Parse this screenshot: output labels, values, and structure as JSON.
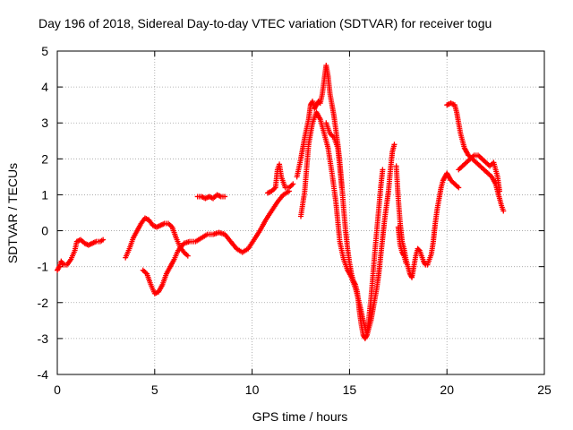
{
  "chart_data": {
    "type": "scatter",
    "title": "Day 196 of 2018, Sidereal Day-to-day VTEC variation (SDTVAR) for receiver togu",
    "xlabel": "GPS time / hours",
    "ylabel": "SDTVAR / TECUs",
    "xlim": [
      0,
      25
    ],
    "ylim": [
      -4,
      5
    ],
    "xticks": [
      0,
      5,
      10,
      15,
      20,
      25
    ],
    "yticks": [
      -4,
      -3,
      -2,
      -1,
      0,
      1,
      2,
      3,
      4,
      5
    ],
    "grid": true,
    "marker": "+",
    "color": "#ff0000",
    "series": [
      {
        "name": "SDTVAR",
        "segments": [
          [
            [
              0.0,
              -1.1
            ],
            [
              0.1,
              -1.0
            ],
            [
              0.2,
              -0.85
            ],
            [
              0.3,
              -0.95
            ],
            [
              0.5,
              -0.95
            ],
            [
              0.7,
              -0.8
            ],
            [
              0.9,
              -0.55
            ],
            [
              1.0,
              -0.3
            ],
            [
              1.2,
              -0.25
            ],
            [
              1.4,
              -0.35
            ],
            [
              1.6,
              -0.4
            ],
            [
              1.8,
              -0.35
            ],
            [
              2.0,
              -0.3
            ],
            [
              2.2,
              -0.3
            ],
            [
              2.35,
              -0.25
            ]
          ],
          [
            [
              3.5,
              -0.75
            ],
            [
              3.7,
              -0.5
            ],
            [
              3.9,
              -0.2
            ],
            [
              4.1,
              0.0
            ],
            [
              4.3,
              0.2
            ],
            [
              4.5,
              0.35
            ],
            [
              4.7,
              0.3
            ],
            [
              4.9,
              0.15
            ],
            [
              5.1,
              0.1
            ],
            [
              5.3,
              0.15
            ],
            [
              5.5,
              0.2
            ],
            [
              5.7,
              0.2
            ],
            [
              5.9,
              0.1
            ],
            [
              6.1,
              -0.2
            ],
            [
              6.3,
              -0.45
            ],
            [
              6.5,
              -0.6
            ],
            [
              6.7,
              -0.7
            ]
          ],
          [
            [
              4.4,
              -1.1
            ],
            [
              4.6,
              -1.2
            ],
            [
              4.8,
              -1.5
            ],
            [
              5.0,
              -1.75
            ],
            [
              5.2,
              -1.7
            ],
            [
              5.4,
              -1.5
            ],
            [
              5.6,
              -1.2
            ],
            [
              5.8,
              -1.0
            ],
            [
              6.0,
              -0.8
            ],
            [
              6.2,
              -0.55
            ],
            [
              6.5,
              -0.35
            ],
            [
              6.8,
              -0.3
            ],
            [
              7.1,
              -0.3
            ],
            [
              7.4,
              -0.2
            ],
            [
              7.7,
              -0.1
            ],
            [
              8.0,
              -0.1
            ],
            [
              8.3,
              -0.05
            ],
            [
              8.6,
              -0.1
            ],
            [
              8.9,
              -0.3
            ],
            [
              9.2,
              -0.5
            ],
            [
              9.5,
              -0.6
            ],
            [
              9.8,
              -0.5
            ],
            [
              10.1,
              -0.25
            ],
            [
              10.4,
              0.0
            ],
            [
              10.7,
              0.3
            ],
            [
              11.0,
              0.55
            ],
            [
              11.3,
              0.8
            ],
            [
              11.6,
              1.0
            ],
            [
              11.9,
              1.1
            ]
          ],
          [
            [
              7.2,
              0.95
            ],
            [
              7.4,
              0.95
            ],
            [
              7.6,
              0.9
            ],
            [
              7.8,
              0.95
            ],
            [
              8.0,
              0.9
            ],
            [
              8.2,
              1.0
            ],
            [
              8.4,
              0.95
            ],
            [
              8.6,
              0.95
            ]
          ],
          [
            [
              10.8,
              1.05
            ],
            [
              11.0,
              1.1
            ],
            [
              11.2,
              1.2
            ],
            [
              11.3,
              1.7
            ],
            [
              11.4,
              1.85
            ],
            [
              11.5,
              1.5
            ],
            [
              11.7,
              1.2
            ],
            [
              11.9,
              1.2
            ],
            [
              12.1,
              1.3
            ]
          ],
          [
            [
              12.3,
              1.5
            ],
            [
              12.5,
              2.0
            ],
            [
              12.7,
              2.6
            ],
            [
              12.9,
              3.1
            ],
            [
              13.0,
              3.5
            ],
            [
              13.1,
              3.6
            ],
            [
              13.2,
              3.4
            ],
            [
              13.3,
              3.5
            ],
            [
              13.4,
              3.6
            ],
            [
              13.5,
              3.55
            ],
            [
              13.6,
              3.8
            ],
            [
              13.7,
              4.2
            ],
            [
              13.8,
              4.6
            ],
            [
              13.9,
              4.3
            ],
            [
              14.0,
              3.8
            ],
            [
              14.1,
              3.5
            ],
            [
              14.2,
              3.2
            ],
            [
              14.3,
              2.8
            ],
            [
              14.4,
              2.4
            ],
            [
              14.5,
              1.9
            ],
            [
              14.6,
              1.3
            ],
            [
              14.7,
              0.6
            ],
            [
              14.8,
              0.0
            ],
            [
              14.9,
              -0.5
            ],
            [
              15.0,
              -0.9
            ],
            [
              15.1,
              -1.2
            ],
            [
              15.2,
              -1.4
            ],
            [
              15.3,
              -1.5
            ],
            [
              15.4,
              -1.7
            ],
            [
              15.5,
              -2.2
            ],
            [
              15.6,
              -2.6
            ],
            [
              15.7,
              -2.9
            ],
            [
              15.8,
              -3.0
            ],
            [
              15.9,
              -2.9
            ],
            [
              16.0,
              -2.7
            ],
            [
              16.1,
              -2.5
            ],
            [
              16.2,
              -2.2
            ],
            [
              16.3,
              -1.9
            ],
            [
              16.4,
              -1.6
            ],
            [
              16.5,
              -1.2
            ],
            [
              16.6,
              -0.7
            ],
            [
              16.7,
              -0.2
            ],
            [
              16.8,
              0.3
            ],
            [
              16.9,
              0.7
            ],
            [
              17.0,
              1.1
            ],
            [
              17.1,
              1.7
            ],
            [
              17.2,
              2.2
            ],
            [
              17.3,
              2.4
            ]
          ],
          [
            [
              12.5,
              0.4
            ],
            [
              12.7,
              1.1
            ],
            [
              12.9,
              2.4
            ],
            [
              13.1,
              3.0
            ],
            [
              13.3,
              3.3
            ],
            [
              13.5,
              3.1
            ],
            [
              13.7,
              2.7
            ],
            [
              13.9,
              2.3
            ],
            [
              14.1,
              1.6
            ],
            [
              14.3,
              0.8
            ],
            [
              14.5,
              -0.3
            ],
            [
              14.7,
              -0.8
            ],
            [
              14.9,
              -1.1
            ],
            [
              15.1,
              -1.3
            ],
            [
              15.3,
              -1.6
            ],
            [
              15.5,
              -2.0
            ],
            [
              15.7,
              -2.5
            ],
            [
              15.9,
              -2.9
            ],
            [
              16.1,
              -1.9
            ],
            [
              16.3,
              -0.6
            ],
            [
              16.5,
              0.6
            ],
            [
              16.6,
              1.2
            ],
            [
              16.7,
              1.7
            ]
          ],
          [
            [
              13.8,
              3.0
            ],
            [
              14.0,
              2.7
            ],
            [
              14.2,
              2.6
            ],
            [
              14.4,
              2.3
            ],
            [
              14.5,
              1.8
            ],
            [
              14.6,
              1.2
            ]
          ],
          [
            [
              17.4,
              1.8
            ],
            [
              17.5,
              0.9
            ],
            [
              17.6,
              0.2
            ],
            [
              17.7,
              -0.3
            ],
            [
              17.8,
              -0.5
            ],
            [
              17.9,
              -0.8
            ],
            [
              18.0,
              -1.0
            ],
            [
              18.1,
              -1.2
            ],
            [
              18.2,
              -1.3
            ],
            [
              18.3,
              -1.0
            ],
            [
              18.4,
              -0.7
            ],
            [
              18.5,
              -0.5
            ],
            [
              18.6,
              -0.55
            ],
            [
              18.7,
              -0.7
            ],
            [
              18.8,
              -0.85
            ],
            [
              18.9,
              -0.95
            ],
            [
              19.0,
              -0.95
            ],
            [
              19.1,
              -0.8
            ],
            [
              19.2,
              -0.65
            ],
            [
              19.3,
              -0.3
            ],
            [
              19.4,
              0.2
            ],
            [
              19.5,
              0.6
            ],
            [
              19.6,
              0.9
            ],
            [
              19.7,
              1.2
            ],
            [
              19.8,
              1.4
            ],
            [
              19.9,
              1.5
            ],
            [
              20.0,
              1.6
            ],
            [
              20.1,
              1.5
            ],
            [
              20.2,
              1.4
            ],
            [
              20.4,
              1.3
            ],
            [
              20.6,
              1.2
            ]
          ],
          [
            [
              17.5,
              0.1
            ],
            [
              17.6,
              -0.4
            ],
            [
              17.7,
              -0.6
            ],
            [
              17.8,
              -0.7
            ],
            [
              17.9,
              -0.9
            ]
          ],
          [
            [
              20.0,
              3.5
            ],
            [
              20.2,
              3.55
            ],
            [
              20.4,
              3.5
            ],
            [
              20.5,
              3.3
            ],
            [
              20.6,
              3.0
            ],
            [
              20.7,
              2.7
            ],
            [
              20.8,
              2.5
            ],
            [
              20.9,
              2.3
            ],
            [
              21.0,
              2.2
            ],
            [
              21.1,
              2.1
            ],
            [
              21.3,
              2.0
            ],
            [
              21.5,
              1.9
            ],
            [
              21.7,
              1.8
            ],
            [
              21.9,
              1.7
            ],
            [
              22.1,
              1.6
            ],
            [
              22.3,
              1.5
            ],
            [
              22.5,
              1.3
            ],
            [
              22.7,
              0.9
            ],
            [
              22.8,
              0.7
            ],
            [
              22.9,
              0.55
            ]
          ],
          [
            [
              20.6,
              1.7
            ],
            [
              20.8,
              1.8
            ],
            [
              21.0,
              1.9
            ],
            [
              21.2,
              2.0
            ],
            [
              21.4,
              2.1
            ],
            [
              21.6,
              2.1
            ],
            [
              21.8,
              2.0
            ],
            [
              22.0,
              1.9
            ],
            [
              22.2,
              1.8
            ],
            [
              22.4,
              1.9
            ],
            [
              22.5,
              1.7
            ],
            [
              22.6,
              1.5
            ],
            [
              22.7,
              1.1
            ]
          ]
        ]
      }
    ]
  }
}
